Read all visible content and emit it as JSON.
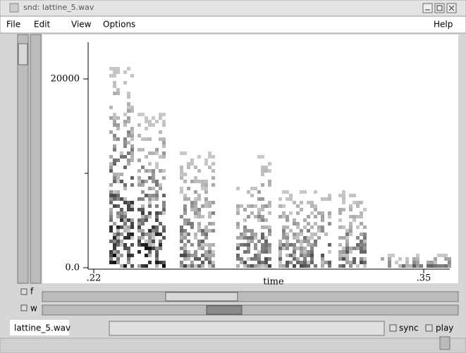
{
  "window": {
    "title": "snd: lattine_5.wav"
  },
  "menu": [
    "File",
    "Edit",
    "View",
    "Options",
    "Help"
  ],
  "graph": {
    "y_ticks": [
      "20000",
      "0.0"
    ],
    "x_ticks": [
      ".22",
      ".35"
    ],
    "x_label": "time"
  },
  "controls": {
    "f": "f",
    "w": "w"
  },
  "status": {
    "file": "lattine_5.wav",
    "sync": "sync",
    "play": "play"
  }
}
